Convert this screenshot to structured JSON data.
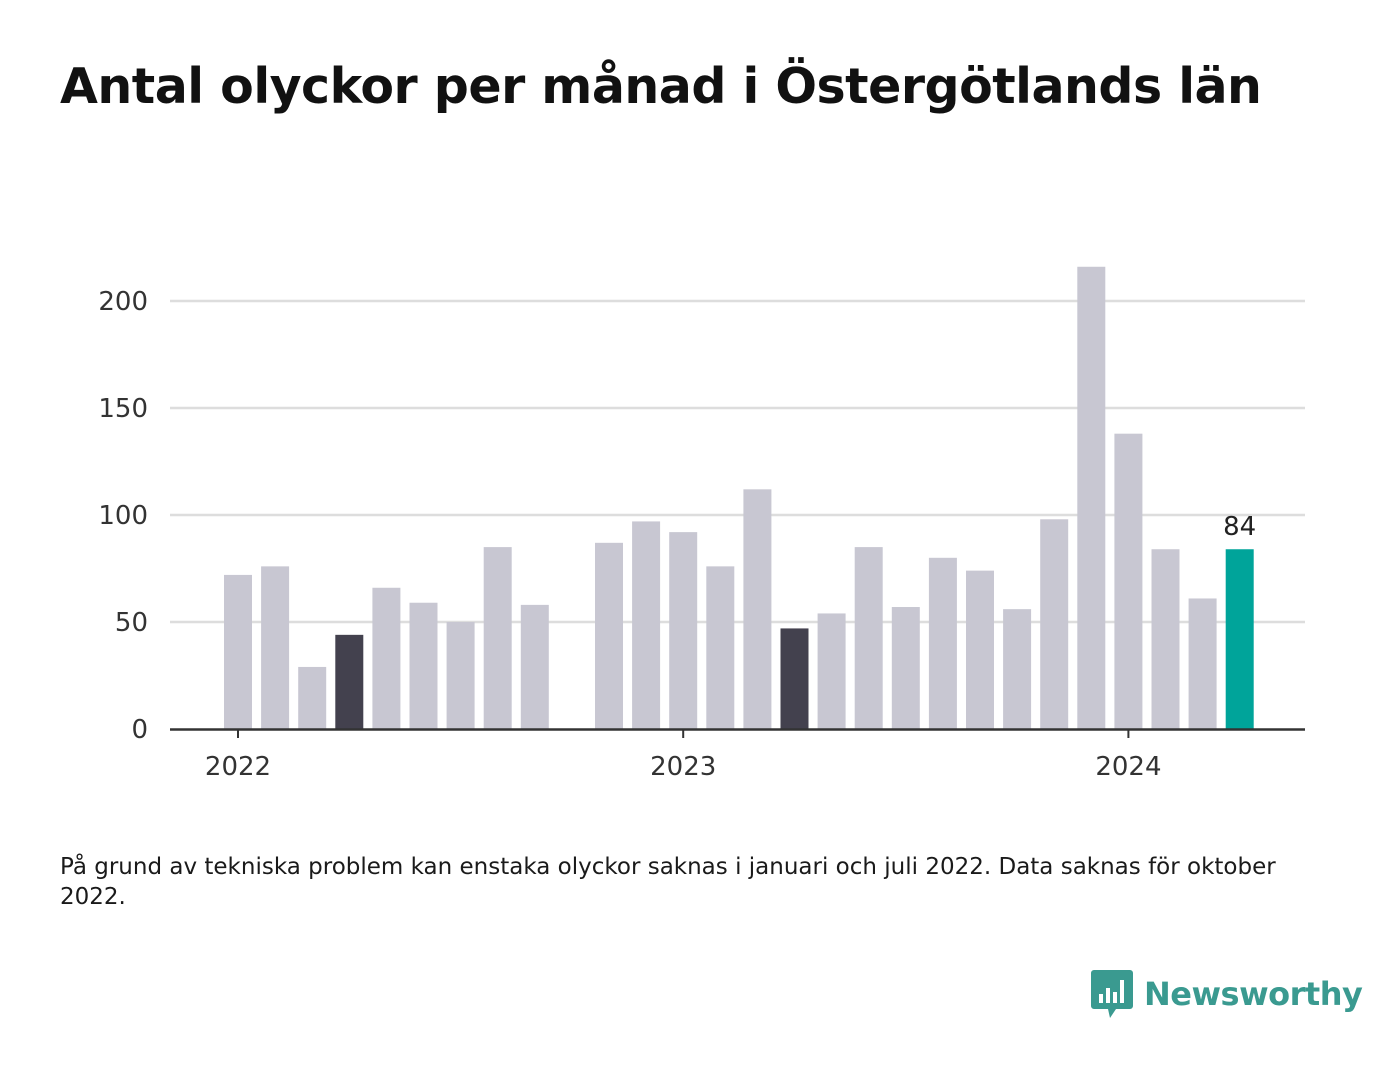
{
  "title": "Antal olyckor per månad i Östergötlands län",
  "note": "På grund av tekniska problem kan enstaka olyckor saknas i januari och juli 2022. Data saknas för oktober 2022.",
  "brand": {
    "name": "Newsworthy",
    "color": "#3a9a90"
  },
  "colors": {
    "default": "#c8c7d2",
    "highlight_dark": "#43414e",
    "latest": "#00a49a",
    "grid": "#dddddd",
    "axis": "#333333"
  },
  "chart_data": {
    "type": "bar",
    "title": "Antal olyckor per månad i Östergötlands län",
    "xlabel": "",
    "ylabel": "",
    "ylim": [
      0,
      215
    ],
    "yticks": [
      0,
      50,
      100,
      150,
      200
    ],
    "xticks": [
      "2022",
      "2023",
      "2024"
    ],
    "grid": true,
    "series": [
      {
        "values": [
          {
            "month": "2022-01",
            "value": 72,
            "style": "default"
          },
          {
            "month": "2022-02",
            "value": 76,
            "style": "default"
          },
          {
            "month": "2022-03",
            "value": 29,
            "style": "default"
          },
          {
            "month": "2022-04",
            "value": 44,
            "style": "highlight_dark"
          },
          {
            "month": "2022-05",
            "value": 66,
            "style": "default"
          },
          {
            "month": "2022-06",
            "value": 59,
            "style": "default"
          },
          {
            "month": "2022-07",
            "value": 50,
            "style": "default"
          },
          {
            "month": "2022-08",
            "value": 85,
            "style": "default"
          },
          {
            "month": "2022-09",
            "value": 58,
            "style": "default"
          },
          {
            "month": "2022-10",
            "value": null,
            "style": "default"
          },
          {
            "month": "2022-11",
            "value": 87,
            "style": "default"
          },
          {
            "month": "2022-12",
            "value": 97,
            "style": "default"
          },
          {
            "month": "2023-01",
            "value": 92,
            "style": "default"
          },
          {
            "month": "2023-02",
            "value": 76,
            "style": "default"
          },
          {
            "month": "2023-03",
            "value": 112,
            "style": "default"
          },
          {
            "month": "2023-04",
            "value": 47,
            "style": "highlight_dark"
          },
          {
            "month": "2023-05",
            "value": 54,
            "style": "default"
          },
          {
            "month": "2023-06",
            "value": 85,
            "style": "default"
          },
          {
            "month": "2023-07",
            "value": 57,
            "style": "default"
          },
          {
            "month": "2023-08",
            "value": 80,
            "style": "default"
          },
          {
            "month": "2023-09",
            "value": 74,
            "style": "default"
          },
          {
            "month": "2023-10",
            "value": 56,
            "style": "default"
          },
          {
            "month": "2023-11",
            "value": 98,
            "style": "default"
          },
          {
            "month": "2023-12",
            "value": 216,
            "style": "default"
          },
          {
            "month": "2024-01",
            "value": 138,
            "style": "default"
          },
          {
            "month": "2024-02",
            "value": 84,
            "style": "default"
          },
          {
            "month": "2024-03",
            "value": 61,
            "style": "default"
          },
          {
            "month": "2024-04",
            "value": 84,
            "style": "latest"
          }
        ]
      }
    ],
    "data_label": "84"
  }
}
